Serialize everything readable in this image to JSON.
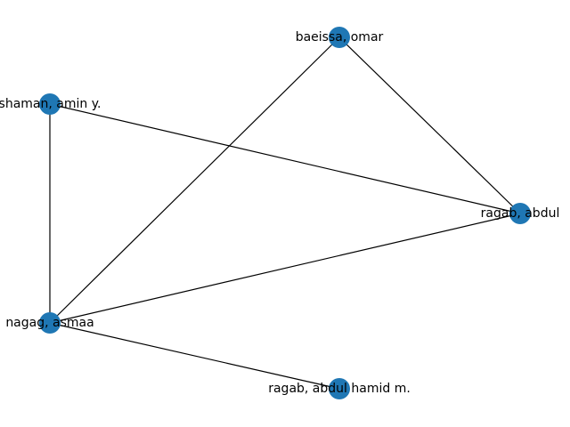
{
  "graph": {
    "type": "network",
    "node_color": "#1f77b4",
    "edge_color": "#000000",
    "nodes": [
      {
        "id": "baeissa",
        "label": "baeissa, omar"
      },
      {
        "id": "shaman",
        "label": "shaman, amin y."
      },
      {
        "id": "ragab_abdul",
        "label": "ragab, abdul"
      },
      {
        "id": "nagag",
        "label": "nagag, asmaa"
      },
      {
        "id": "ragab_abdul_hamid",
        "label": "ragab, abdul hamid m."
      }
    ],
    "edges": [
      {
        "source": "baeissa",
        "target": "nagag"
      },
      {
        "source": "baeissa",
        "target": "ragab_abdul"
      },
      {
        "source": "shaman",
        "target": "ragab_abdul"
      },
      {
        "source": "shaman",
        "target": "nagag"
      },
      {
        "source": "ragab_abdul",
        "target": "nagag"
      },
      {
        "source": "nagag",
        "target": "ragab_abdul_hamid"
      }
    ]
  }
}
